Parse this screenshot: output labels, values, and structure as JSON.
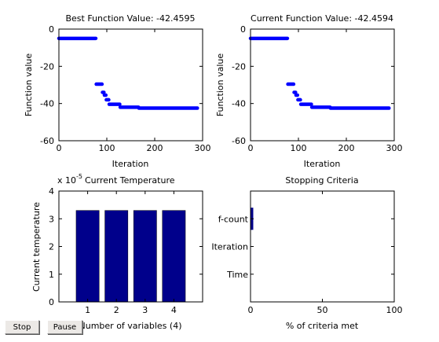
{
  "controls": {
    "stop_label": "Stop",
    "pause_label": "Pause"
  },
  "colors": {
    "line_series": "#0000ff",
    "bars": "#00008b",
    "axes": "#000000",
    "background": "#ffffff"
  },
  "chart_data": [
    {
      "type": "scatter",
      "title": "Best Function Value: -42.4595",
      "xlabel": "Iteration",
      "ylabel": "Function value",
      "xlim": [
        0,
        300
      ],
      "ylim": [
        -60,
        0
      ],
      "xticks": [
        0,
        100,
        200,
        300
      ],
      "yticks": [
        0,
        -20,
        -40,
        -60
      ],
      "grid": false,
      "series": [
        {
          "segments": [
            {
              "x0": 0,
              "x1": 77,
              "y": -5
            },
            {
              "x0": 78,
              "x1": 90,
              "y": -29.6
            },
            {
              "x0": 91,
              "x1": 94,
              "y": -34
            },
            {
              "x0": 95,
              "x1": 98,
              "y": -35.5
            },
            {
              "x0": 99,
              "x1": 104,
              "y": -38
            },
            {
              "x0": 105,
              "x1": 127,
              "y": -40.4
            },
            {
              "x0": 128,
              "x1": 166,
              "y": -42
            },
            {
              "x0": 167,
              "x1": 289,
              "y": -42.4595
            }
          ]
        }
      ]
    },
    {
      "type": "scatter",
      "title": "Current Function Value: -42.4594",
      "xlabel": "Iteration",
      "ylabel": "Function value",
      "xlim": [
        0,
        300
      ],
      "ylim": [
        -60,
        0
      ],
      "xticks": [
        0,
        100,
        200,
        300
      ],
      "yticks": [
        0,
        -20,
        -40,
        -60
      ],
      "grid": false,
      "series": [
        {
          "segments": [
            {
              "x0": 0,
              "x1": 77,
              "y": -5
            },
            {
              "x0": 78,
              "x1": 90,
              "y": -29.6
            },
            {
              "x0": 91,
              "x1": 94,
              "y": -34
            },
            {
              "x0": 95,
              "x1": 98,
              "y": -35.5
            },
            {
              "x0": 99,
              "x1": 104,
              "y": -38
            },
            {
              "x0": 105,
              "x1": 127,
              "y": -40.4
            },
            {
              "x0": 128,
              "x1": 166,
              "y": -42
            },
            {
              "x0": 167,
              "x1": 289,
              "y": -42.4594
            }
          ]
        }
      ]
    },
    {
      "type": "bar",
      "title": "Current Temperature",
      "exponent_label": "x 10",
      "exponent_power": "-5",
      "xlabel": "Number of variables (4)",
      "ylabel": "Current temperature",
      "categories": [
        "1",
        "2",
        "3",
        "4"
      ],
      "values": [
        3.3,
        3.3,
        3.3,
        3.3
      ],
      "xlim": [
        0,
        5
      ],
      "ylim": [
        0,
        4
      ],
      "yticks": [
        0,
        1,
        2,
        3,
        4
      ],
      "grid": false
    },
    {
      "type": "bar",
      "orientation": "horizontal",
      "title": "Stopping Criteria",
      "xlabel": "% of criteria met",
      "ylabel": "",
      "categories": [
        "Time",
        "Iteration",
        "f-count"
      ],
      "values": [
        0,
        0,
        1.9
      ],
      "xlim": [
        0,
        100
      ],
      "xticks": [
        0,
        50,
        100
      ],
      "grid": false
    }
  ]
}
